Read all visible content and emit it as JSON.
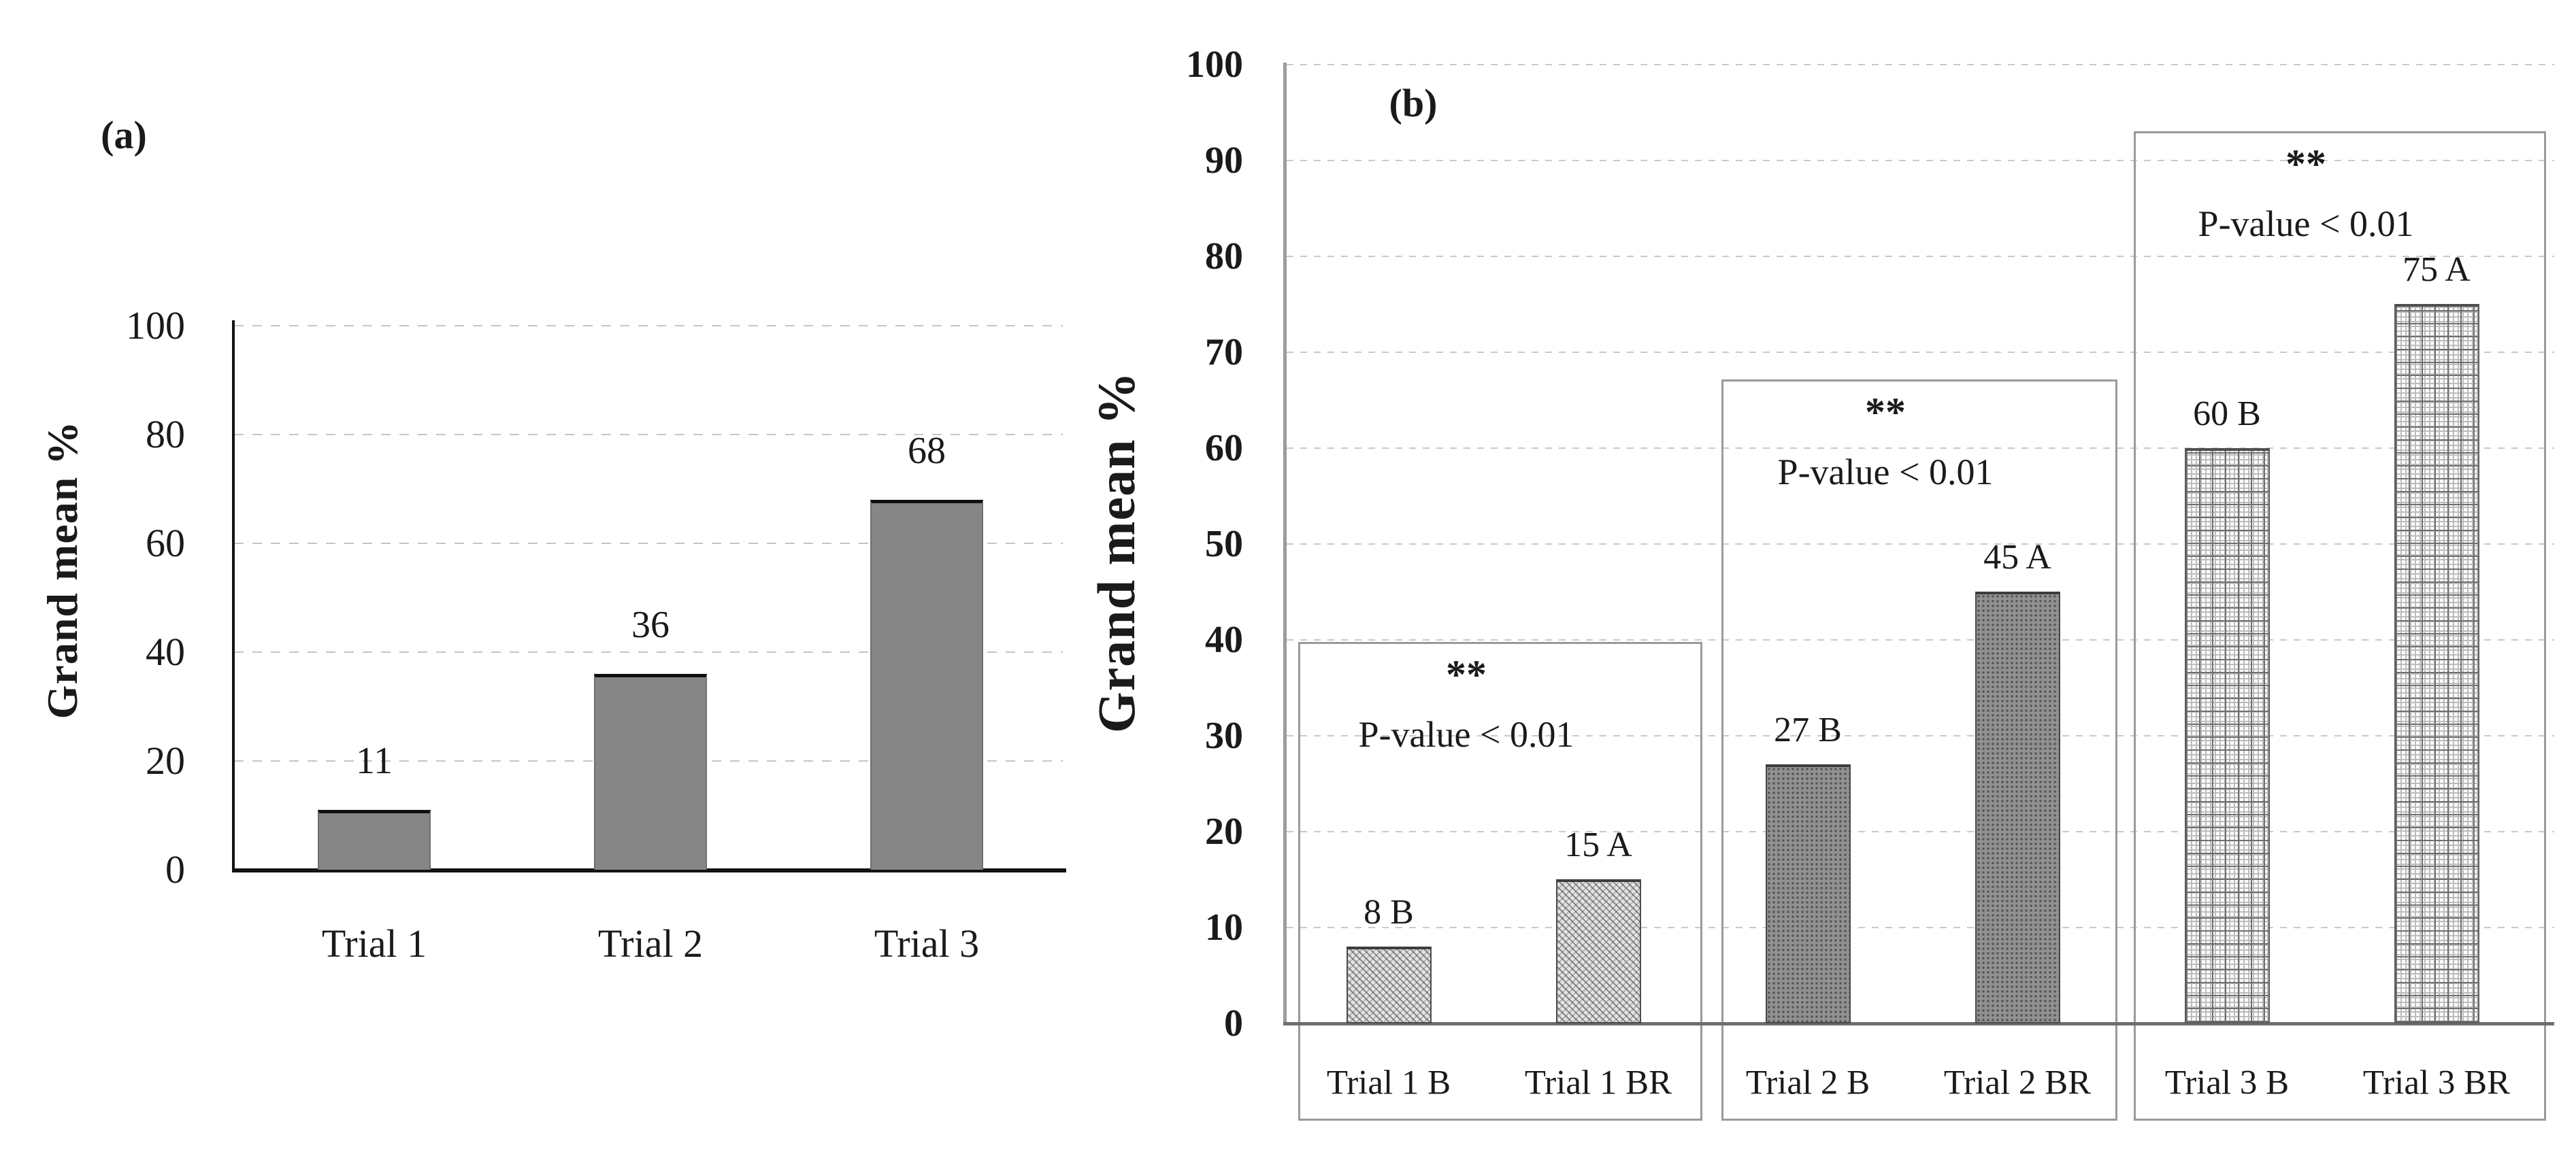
{
  "figure": {
    "panel_a": {
      "label": "(a)",
      "y_axis_title": "Grand mean %",
      "y_ticks": [
        "0",
        "20",
        "40",
        "60",
        "80",
        "100"
      ],
      "categories": [
        "Trial 1",
        "Trial 2",
        "Trial 3"
      ],
      "values": [
        11,
        36,
        68
      ],
      "value_labels": [
        "11",
        "36",
        "68"
      ]
    },
    "panel_b": {
      "label": "(b)",
      "y_axis_title": "Grand mean %",
      "y_ticks": [
        "0",
        "10",
        "20",
        "30",
        "40",
        "50",
        "60",
        "70",
        "80",
        "90",
        "100"
      ],
      "categories": [
        "Trial 1 B",
        "Trial 1 BR",
        "Trial 2 B",
        "Trial 2 BR",
        "Trial 3 B",
        "Trial 3 BR"
      ],
      "values": [
        8,
        15,
        27,
        45,
        60,
        75
      ],
      "value_labels": [
        "8 B",
        "15 A",
        "27 B",
        "45 A",
        "60 B",
        "75 A"
      ],
      "pair_annotations": [
        {
          "stars": "**",
          "text": "P-value < 0.01"
        },
        {
          "stars": "**",
          "text": "P-value < 0.01"
        },
        {
          "stars": "**",
          "text": "P-value < 0.01"
        }
      ]
    },
    "colors": {
      "bar_solid": "#868686",
      "gridline": "#c7c7c7",
      "axis_black": "#121212",
      "axis_gray": "#9c9c9c",
      "box_border": "#9a9a9a"
    }
  },
  "chart_data": [
    {
      "type": "bar",
      "panel": "(a)",
      "title": "",
      "categories": [
        "Trial 1",
        "Trial 2",
        "Trial 3"
      ],
      "values": [
        11,
        36,
        68
      ],
      "xlabel": "",
      "ylabel": "Grand mean %",
      "ylim": [
        0,
        100
      ],
      "ytick_step": 20,
      "grid": "dashed horizontal",
      "legend": "none",
      "bar_style": "solid gray"
    },
    {
      "type": "bar",
      "panel": "(b)",
      "title": "",
      "categories": [
        "Trial 1 B",
        "Trial 1 BR",
        "Trial 2 B",
        "Trial 2 BR",
        "Trial 3 B",
        "Trial 3 BR"
      ],
      "values": [
        8,
        15,
        27,
        45,
        60,
        75
      ],
      "data_labels": [
        "8 B",
        "15 A",
        "27 B",
        "45 A",
        "60 B",
        "75 A"
      ],
      "xlabel": "",
      "ylabel": "Grand mean %",
      "ylim": [
        0,
        100
      ],
      "ytick_step": 10,
      "grid": "dashed horizontal",
      "legend": "none",
      "bar_styles": [
        "diagonal hatch",
        "diagonal hatch",
        "dotted gray",
        "dotted gray",
        "grid crosshatch",
        "grid crosshatch"
      ],
      "annotations": [
        {
          "group": [
            "Trial 1 B",
            "Trial 1 BR"
          ],
          "stars": "**",
          "text": "P-value < 0.01"
        },
        {
          "group": [
            "Trial 2 B",
            "Trial 2 BR"
          ],
          "stars": "**",
          "text": "P-value < 0.01"
        },
        {
          "group": [
            "Trial 3 B",
            "Trial 3 BR"
          ],
          "stars": "**",
          "text": "P-value < 0.01"
        }
      ]
    }
  ]
}
